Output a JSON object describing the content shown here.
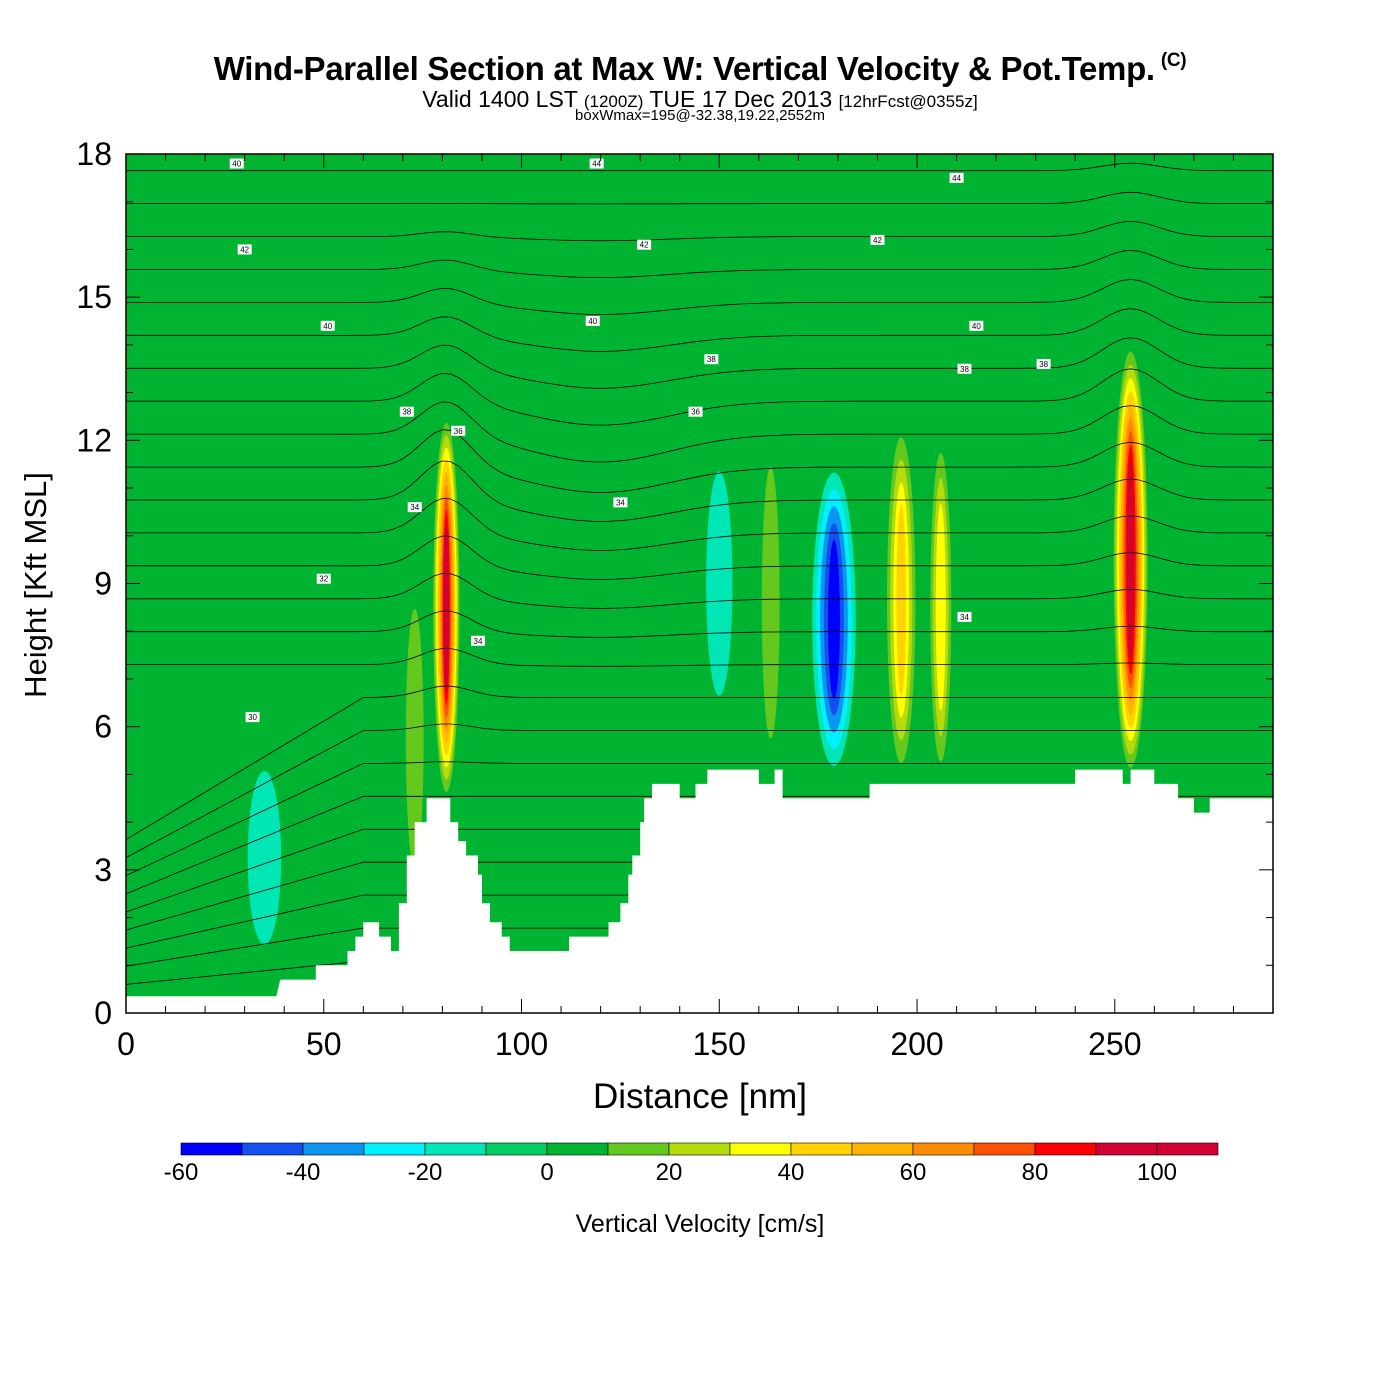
{
  "chart_data": {
    "type": "heatmap",
    "title": "Wind-Parallel Section at Max W: Vertical Velocity & Pot.Temp.",
    "title_mark": "(C)",
    "subtitle": {
      "valid": "Valid 1400 LST",
      "utc": "(1200Z)",
      "date": "TUE 17 Dec 2013",
      "fcst": "[12hrFcst@0355z]"
    },
    "subtitle2": "boxWmax=195@-32.38,19.22,2552m",
    "xlabel": "Distance [nm]",
    "ylabel": "Height [Kft MSL]",
    "xlim": [
      0,
      290
    ],
    "ylim": [
      0,
      18
    ],
    "xticks": [
      0,
      50,
      100,
      150,
      200,
      250
    ],
    "yticks": [
      0,
      3,
      6,
      9,
      12,
      15,
      18
    ],
    "colorbar": {
      "label": "Vertical Velocity [cm/s]",
      "min": -60,
      "max": 110,
      "step": 10,
      "tick_values": [
        -60,
        -40,
        -20,
        0,
        20,
        40,
        60,
        80,
        100
      ],
      "colors": [
        "#0000ff",
        "#1450f0",
        "#0a96f0",
        "#00f0ff",
        "#00e6b4",
        "#00cd64",
        "#00b432",
        "#64c81e",
        "#b4dc0a",
        "#ffff00",
        "#ffd200",
        "#ffb400",
        "#ff8c00",
        "#ff5000",
        "#ff0000",
        "#d20032"
      ]
    },
    "background_value": 3,
    "updrafts": [
      {
        "x": 81,
        "ymin": 4.5,
        "ymax": 12.5,
        "peak": 95,
        "width": 3.5
      },
      {
        "x": 196,
        "ymin": 5.0,
        "ymax": 12.3,
        "peak": 45,
        "width": 4
      },
      {
        "x": 206,
        "ymin": 5.0,
        "ymax": 12.0,
        "peak": 38,
        "width": 3
      },
      {
        "x": 254,
        "ymin": 5.0,
        "ymax": 14.0,
        "peak": 100,
        "width": 4.5
      },
      {
        "x": 163,
        "ymin": 5.2,
        "ymax": 12.0,
        "peak": 15,
        "width": 3
      },
      {
        "x": 73,
        "ymin": 2.5,
        "ymax": 9.0,
        "peak": 15,
        "width": 3
      }
    ],
    "downdrafts": [
      {
        "x": 179,
        "ymin": 5.0,
        "ymax": 11.5,
        "peak": -55,
        "width": 6
      },
      {
        "x": 35,
        "ymin": 1.0,
        "ymax": 5.5,
        "peak": -12,
        "width": 6
      },
      {
        "x": 150,
        "ymin": 6.0,
        "ymax": 12.0,
        "peak": -10,
        "width": 5
      },
      {
        "x": 100,
        "ymin": 3.0,
        "ymax": 8.0,
        "peak": -8,
        "width": 4
      }
    ],
    "terrain": [
      [
        0,
        0.35
      ],
      [
        38,
        0.35
      ],
      [
        39,
        0.7
      ],
      [
        48,
        0.7
      ],
      [
        48,
        1.0
      ],
      [
        56,
        1.0
      ],
      [
        56,
        1.3
      ],
      [
        58,
        1.3
      ],
      [
        58,
        1.6
      ],
      [
        60,
        1.6
      ],
      [
        60,
        1.9
      ],
      [
        64,
        1.9
      ],
      [
        64,
        1.6
      ],
      [
        67,
        1.6
      ],
      [
        67,
        1.3
      ],
      [
        69,
        1.3
      ],
      [
        69,
        2.3
      ],
      [
        71,
        2.3
      ],
      [
        71,
        3.3
      ],
      [
        73,
        3.3
      ],
      [
        73,
        4.0
      ],
      [
        76,
        4.0
      ],
      [
        76,
        4.5
      ],
      [
        82,
        4.5
      ],
      [
        82,
        4.0
      ],
      [
        84,
        4.0
      ],
      [
        84,
        3.6
      ],
      [
        86,
        3.6
      ],
      [
        86,
        3.3
      ],
      [
        89,
        3.3
      ],
      [
        89,
        2.9
      ],
      [
        90,
        2.9
      ],
      [
        90,
        2.3
      ],
      [
        92,
        2.3
      ],
      [
        92,
        1.9
      ],
      [
        95,
        1.9
      ],
      [
        95,
        1.6
      ],
      [
        97,
        1.6
      ],
      [
        97,
        1.3
      ],
      [
        112,
        1.3
      ],
      [
        112,
        1.6
      ],
      [
        122,
        1.6
      ],
      [
        122,
        1.9
      ],
      [
        125,
        1.9
      ],
      [
        125,
        2.3
      ],
      [
        127,
        2.3
      ],
      [
        127,
        2.9
      ],
      [
        128,
        2.9
      ],
      [
        128,
        3.3
      ],
      [
        130,
        3.3
      ],
      [
        130,
        4.0
      ],
      [
        131,
        4.0
      ],
      [
        131,
        4.5
      ],
      [
        133,
        4.5
      ],
      [
        133,
        4.8
      ],
      [
        140,
        4.8
      ],
      [
        140,
        4.5
      ],
      [
        144,
        4.5
      ],
      [
        144,
        4.8
      ],
      [
        147,
        4.8
      ],
      [
        147,
        5.1
      ],
      [
        160,
        5.1
      ],
      [
        160,
        4.8
      ],
      [
        164,
        4.8
      ],
      [
        164,
        5.1
      ],
      [
        166,
        5.1
      ],
      [
        166,
        4.5
      ],
      [
        188,
        4.5
      ],
      [
        188,
        4.8
      ],
      [
        240,
        4.8
      ],
      [
        240,
        5.1
      ],
      [
        252,
        5.1
      ],
      [
        252,
        4.8
      ],
      [
        254,
        4.8
      ],
      [
        254,
        5.1
      ],
      [
        260,
        5.1
      ],
      [
        260,
        4.8
      ],
      [
        266,
        4.8
      ],
      [
        266,
        4.5
      ],
      [
        270,
        4.5
      ],
      [
        270,
        4.2
      ],
      [
        274,
        4.2
      ],
      [
        274,
        4.5
      ],
      [
        290,
        4.5
      ]
    ],
    "theta_labels": [
      "40",
      "44",
      "44",
      "42",
      "42",
      "42",
      "40",
      "40",
      "40",
      "38",
      "38",
      "38",
      "38",
      "36",
      "36",
      "34",
      "34",
      "34",
      "32",
      "30",
      "34"
    ],
    "theta_label_pos": [
      [
        28,
        17.8
      ],
      [
        119,
        17.8
      ],
      [
        210,
        17.5
      ],
      [
        30,
        16.0
      ],
      [
        131,
        16.1
      ],
      [
        190,
        16.2
      ],
      [
        51,
        14.4
      ],
      [
        118,
        14.5
      ],
      [
        215,
        14.4
      ],
      [
        148,
        13.7
      ],
      [
        212,
        13.5
      ],
      [
        232,
        13.6
      ],
      [
        71,
        12.6
      ],
      [
        144,
        12.6
      ],
      [
        84,
        12.2
      ],
      [
        73,
        10.6
      ],
      [
        125,
        10.7
      ],
      [
        212,
        8.3
      ],
      [
        50,
        9.1
      ],
      [
        32,
        6.2
      ],
      [
        89,
        7.8
      ]
    ]
  }
}
